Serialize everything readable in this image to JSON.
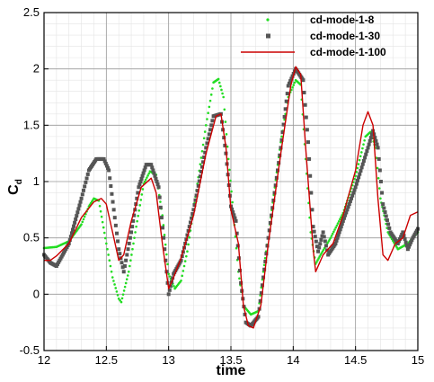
{
  "chart_data": {
    "type": "line",
    "xlabel": "time",
    "ylabel_main": "C",
    "ylabel_sub": "d",
    "xlim": [
      12,
      15
    ],
    "ylim": [
      -0.5,
      2.5
    ],
    "x_ticks": [
      12,
      12.5,
      13,
      13.5,
      14,
      14.5,
      15
    ],
    "x_tick_labels": [
      "12",
      "12.5",
      "13",
      "13.5",
      "14",
      "14.5",
      "15"
    ],
    "y_ticks": [
      -0.5,
      0,
      0.5,
      1,
      1.5,
      2,
      2.5
    ],
    "y_tick_labels": [
      "-0.5",
      "0",
      "0.5",
      "1",
      "1.5",
      "2",
      "2.5"
    ],
    "grid": true,
    "legend_position": "top-right",
    "series": [
      {
        "name": "cd-mode-1-8",
        "style": "dots",
        "color": "#22dd22",
        "points": [
          [
            12.0,
            0.41
          ],
          [
            12.1,
            0.42
          ],
          [
            12.2,
            0.47
          ],
          [
            12.3,
            0.62
          ],
          [
            12.36,
            0.78
          ],
          [
            12.4,
            0.85
          ],
          [
            12.44,
            0.83
          ],
          [
            12.5,
            0.45
          ],
          [
            12.55,
            0.15
          ],
          [
            12.6,
            -0.04
          ],
          [
            12.62,
            -0.07
          ],
          [
            12.68,
            0.2
          ],
          [
            12.74,
            0.6
          ],
          [
            12.8,
            0.98
          ],
          [
            12.85,
            1.09
          ],
          [
            12.9,
            1.06
          ],
          [
            12.95,
            0.7
          ],
          [
            13.0,
            0.18
          ],
          [
            13.05,
            0.05
          ],
          [
            13.1,
            0.12
          ],
          [
            13.15,
            0.38
          ],
          [
            13.2,
            0.75
          ],
          [
            13.3,
            1.5
          ],
          [
            13.36,
            1.88
          ],
          [
            13.4,
            1.91
          ],
          [
            13.44,
            1.75
          ],
          [
            13.48,
            1.2
          ],
          [
            13.52,
            0.72
          ],
          [
            13.56,
            0.2
          ],
          [
            13.6,
            -0.1
          ],
          [
            13.66,
            -0.18
          ],
          [
            13.72,
            -0.15
          ],
          [
            13.76,
            0.2
          ],
          [
            13.82,
            0.68
          ],
          [
            13.9,
            1.35
          ],
          [
            13.96,
            1.75
          ],
          [
            14.02,
            1.9
          ],
          [
            14.06,
            1.86
          ],
          [
            14.1,
            1.2
          ],
          [
            14.14,
            0.55
          ],
          [
            14.18,
            0.27
          ],
          [
            14.22,
            0.35
          ],
          [
            14.3,
            0.5
          ],
          [
            14.4,
            0.72
          ],
          [
            14.5,
            1.05
          ],
          [
            14.58,
            1.4
          ],
          [
            14.62,
            1.44
          ],
          [
            14.66,
            1.3
          ],
          [
            14.7,
            0.85
          ],
          [
            14.76,
            0.55
          ],
          [
            14.84,
            0.4
          ],
          [
            14.92,
            0.45
          ],
          [
            15.0,
            0.55
          ]
        ]
      },
      {
        "name": "cd-mode-1-30",
        "style": "squares",
        "color": "#555555",
        "points": [
          [
            12.0,
            0.35
          ],
          [
            12.05,
            0.28
          ],
          [
            12.1,
            0.25
          ],
          [
            12.2,
            0.45
          ],
          [
            12.3,
            0.85
          ],
          [
            12.36,
            1.1
          ],
          [
            12.42,
            1.2
          ],
          [
            12.48,
            1.2
          ],
          [
            12.52,
            1.1
          ],
          [
            12.56,
            0.75
          ],
          [
            12.6,
            0.4
          ],
          [
            12.64,
            0.2
          ],
          [
            12.7,
            0.55
          ],
          [
            12.76,
            0.95
          ],
          [
            12.82,
            1.15
          ],
          [
            12.86,
            1.15
          ],
          [
            12.92,
            0.95
          ],
          [
            12.96,
            0.5
          ],
          [
            13.0,
            0.0
          ],
          [
            13.04,
            0.18
          ],
          [
            13.1,
            0.3
          ],
          [
            13.2,
            0.75
          ],
          [
            13.3,
            1.3
          ],
          [
            13.36,
            1.58
          ],
          [
            13.42,
            1.6
          ],
          [
            13.46,
            1.25
          ],
          [
            13.5,
            0.78
          ],
          [
            13.54,
            0.65
          ],
          [
            13.58,
            0.1
          ],
          [
            13.62,
            -0.25
          ],
          [
            13.66,
            -0.28
          ],
          [
            13.72,
            -0.2
          ],
          [
            13.8,
            0.5
          ],
          [
            13.9,
            1.3
          ],
          [
            13.96,
            1.85
          ],
          [
            14.02,
            2.0
          ],
          [
            14.08,
            1.9
          ],
          [
            14.12,
            1.35
          ],
          [
            14.16,
            0.6
          ],
          [
            14.2,
            0.38
          ],
          [
            14.24,
            0.55
          ],
          [
            14.28,
            0.35
          ],
          [
            14.34,
            0.45
          ],
          [
            14.4,
            0.65
          ],
          [
            14.5,
            0.95
          ],
          [
            14.6,
            1.3
          ],
          [
            14.64,
            1.45
          ],
          [
            14.68,
            1.3
          ],
          [
            14.72,
            0.8
          ],
          [
            14.78,
            0.55
          ],
          [
            14.84,
            0.45
          ],
          [
            14.88,
            0.55
          ],
          [
            14.92,
            0.4
          ],
          [
            14.96,
            0.5
          ],
          [
            15.0,
            0.58
          ]
        ]
      },
      {
        "name": "cd-mode-1-100",
        "style": "line",
        "color": "#cc0000",
        "points": [
          [
            12.0,
            0.3
          ],
          [
            12.05,
            0.3
          ],
          [
            12.1,
            0.34
          ],
          [
            12.2,
            0.45
          ],
          [
            12.3,
            0.68
          ],
          [
            12.4,
            0.82
          ],
          [
            12.46,
            0.85
          ],
          [
            12.5,
            0.8
          ],
          [
            12.56,
            0.5
          ],
          [
            12.6,
            0.3
          ],
          [
            12.64,
            0.35
          ],
          [
            12.7,
            0.65
          ],
          [
            12.78,
            0.95
          ],
          [
            12.86,
            1.03
          ],
          [
            12.9,
            0.9
          ],
          [
            12.95,
            0.45
          ],
          [
            13.0,
            0.05
          ],
          [
            13.04,
            0.15
          ],
          [
            13.1,
            0.32
          ],
          [
            13.2,
            0.7
          ],
          [
            13.3,
            1.25
          ],
          [
            13.38,
            1.58
          ],
          [
            13.42,
            1.6
          ],
          [
            13.46,
            1.3
          ],
          [
            13.5,
            0.75
          ],
          [
            13.56,
            0.45
          ],
          [
            13.6,
            -0.1
          ],
          [
            13.64,
            -0.28
          ],
          [
            13.68,
            -0.3
          ],
          [
            13.74,
            -0.1
          ],
          [
            13.8,
            0.45
          ],
          [
            13.9,
            1.25
          ],
          [
            13.98,
            1.85
          ],
          [
            14.02,
            2.02
          ],
          [
            14.06,
            1.95
          ],
          [
            14.1,
            1.3
          ],
          [
            14.16,
            0.4
          ],
          [
            14.18,
            0.2
          ],
          [
            14.24,
            0.35
          ],
          [
            14.32,
            0.45
          ],
          [
            14.4,
            0.7
          ],
          [
            14.5,
            1.1
          ],
          [
            14.56,
            1.5
          ],
          [
            14.6,
            1.62
          ],
          [
            14.64,
            1.5
          ],
          [
            14.68,
            0.85
          ],
          [
            14.72,
            0.35
          ],
          [
            14.76,
            0.3
          ],
          [
            14.82,
            0.45
          ],
          [
            14.88,
            0.5
          ],
          [
            14.94,
            0.7
          ],
          [
            15.0,
            0.73
          ]
        ]
      }
    ]
  }
}
